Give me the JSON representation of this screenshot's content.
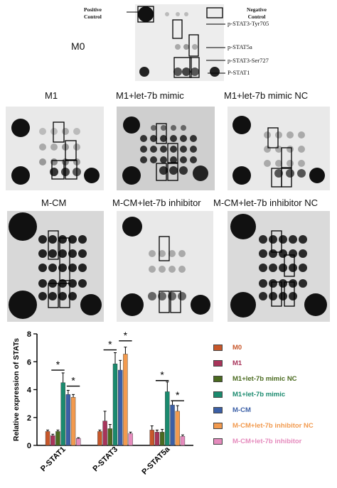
{
  "m0": {
    "label": "M0",
    "annotations": {
      "positive_control": "Positive Control",
      "negative_control": "Negative Control",
      "p_stat3_tyr705": "p-STAT3-Tyr705",
      "p_stat5a": "p-STAT5a",
      "p_stat3_ser727": "p-STAT3-Ser727",
      "p_stat1": "P-STAT1"
    }
  },
  "blots": [
    {
      "label": "M1"
    },
    {
      "label": "M1+let-7b mimic"
    },
    {
      "label": "M1+let-7b mimic NC"
    },
    {
      "label": "M-CM"
    },
    {
      "label": "M-CM+let-7b inhibitor"
    },
    {
      "label": "M-CM+let-7b inhibitor NC"
    }
  ],
  "chart_data": {
    "type": "bar",
    "ylabel": "Relative expression of STATs",
    "xlabel": "",
    "ylim": [
      0,
      8
    ],
    "yticks": [
      "0",
      "2",
      "4",
      "6",
      "8"
    ],
    "categories": [
      "P-STAT1",
      "P-STAT3",
      "P-STAT5a"
    ],
    "series": [
      {
        "name": "M0",
        "color": "#c8572a",
        "values": [
          1.0,
          1.0,
          1.1
        ],
        "errors": [
          0.1,
          0.1,
          0.3
        ]
      },
      {
        "name": "M1",
        "color": "#a8345a",
        "values": [
          0.7,
          1.75,
          0.95
        ],
        "errors": [
          0.1,
          0.7,
          0.15
        ]
      },
      {
        "name": "M1+let-7b mimic NC",
        "color": "#4a6a1f",
        "values": [
          1.0,
          1.2,
          0.95
        ],
        "errors": [
          0.1,
          0.3,
          0.2
        ]
      },
      {
        "name": "M1+let-7b mimic",
        "color": "#1a8a6e",
        "values": [
          4.5,
          5.85,
          3.85
        ],
        "errors": [
          0.7,
          0.8,
          0.7
        ]
      },
      {
        "name": "M-CM",
        "color": "#3b5fa6",
        "values": [
          3.65,
          5.4,
          2.9
        ],
        "errors": [
          0.3,
          0.7,
          0.3
        ]
      },
      {
        "name": "M-CM+let-7b inhibitor NC",
        "color": "#f29a4e",
        "values": [
          3.45,
          6.55,
          2.45
        ],
        "errors": [
          0.2,
          0.5,
          0.4
        ]
      },
      {
        "name": "M-CM+let-7b inhibitor",
        "color": "#e58bbd",
        "values": [
          0.5,
          0.85,
          0.65
        ],
        "errors": [
          0.05,
          0.1,
          0.1
        ]
      }
    ],
    "significance": [
      {
        "category": "P-STAT1",
        "from_series": 1,
        "to_series": 3,
        "label": "*",
        "level": 5.4
      },
      {
        "category": "P-STAT1",
        "from_series": 4,
        "to_series": 6,
        "label": "*",
        "level": 4.25
      },
      {
        "category": "P-STAT3",
        "from_series": 1,
        "to_series": 3,
        "label": "*",
        "level": 6.85
      },
      {
        "category": "P-STAT3",
        "from_series": 4,
        "to_series": 6,
        "label": "*",
        "level": 7.5
      },
      {
        "category": "P-STAT5a",
        "from_series": 1,
        "to_series": 3,
        "label": "*",
        "level": 4.65
      },
      {
        "category": "P-STAT5a",
        "from_series": 4,
        "to_series": 6,
        "label": "*",
        "level": 3.2
      }
    ]
  }
}
